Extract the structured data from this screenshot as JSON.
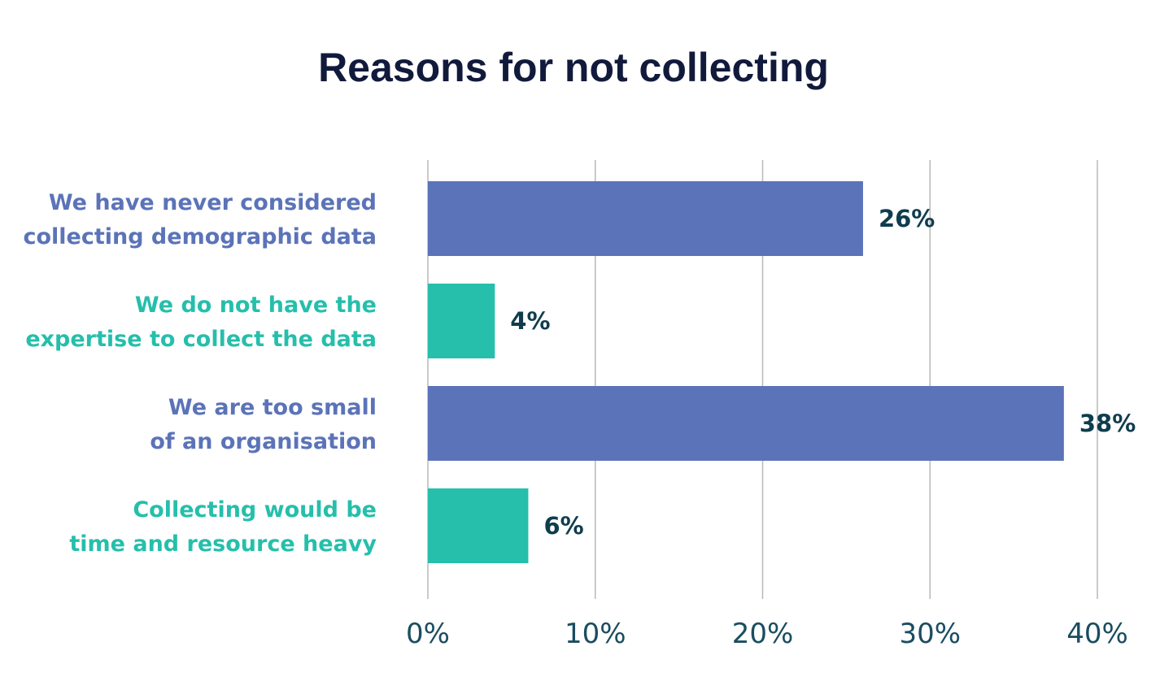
{
  "chart_data": {
    "type": "bar",
    "orientation": "horizontal",
    "title": "Reasons for not collecting",
    "categories": [
      [
        "We have never considered",
        "collecting demographic data"
      ],
      [
        "We do not have the",
        "expertise to collect the data"
      ],
      [
        "We are too small",
        "of an organisation"
      ],
      [
        "Collecting would be",
        "time and resource heavy"
      ]
    ],
    "values": [
      26,
      4,
      38,
      6
    ],
    "value_labels": [
      "26%",
      "4%",
      "38%",
      "6%"
    ],
    "bar_colors": [
      "#5b73b8",
      "#25bfab",
      "#5b73b8",
      "#25bfab"
    ],
    "label_colors": [
      "#5b73b8",
      "#25bfab",
      "#5b73b8",
      "#25bfab"
    ],
    "xlim": [
      0,
      40
    ],
    "xticks": [
      0,
      10,
      20,
      30,
      40
    ],
    "xtick_labels": [
      "0%",
      "10%",
      "20%",
      "30%",
      "40%"
    ],
    "xlabel": "",
    "ylabel": "",
    "grid": true
  }
}
